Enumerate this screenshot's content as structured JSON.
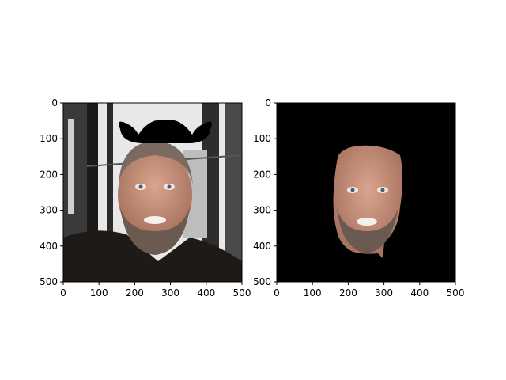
{
  "chart_data": [
    {
      "type": "image",
      "xlim": [
        0,
        500
      ],
      "ylim": [
        500,
        0
      ],
      "xticks": [
        0,
        100,
        200,
        300,
        400,
        500
      ],
      "yticks": [
        0,
        100,
        200,
        300,
        400,
        500
      ],
      "xtick_labels": [
        "0",
        "100",
        "200",
        "300",
        "400",
        "500"
      ],
      "ytick_labels": [
        "0",
        "100",
        "200",
        "300",
        "400",
        "500"
      ],
      "title": "",
      "xlabel": "",
      "ylabel": "",
      "grid": false,
      "content": "photo of a bearded man with a black mustache overlay above his head",
      "colors": {
        "background_light": "#e6e6e6",
        "jacket": "#1e1a18",
        "skin": "#c8907a",
        "beard": "#6b5a50",
        "mustache": "#000000"
      }
    },
    {
      "type": "image",
      "xlim": [
        0,
        500
      ],
      "ylim": [
        500,
        0
      ],
      "xticks": [
        0,
        100,
        200,
        300,
        400,
        500
      ],
      "yticks": [
        0,
        100,
        200,
        300,
        400,
        500
      ],
      "xtick_labels": [
        "0",
        "100",
        "200",
        "300",
        "400",
        "500"
      ],
      "ytick_labels": [
        "0",
        "100",
        "200",
        "300",
        "400",
        "500"
      ],
      "title": "",
      "xlabel": "",
      "ylabel": "",
      "grid": false,
      "content": "segmented face on a black background",
      "colors": {
        "background": "#000000",
        "skin": "#c8907a",
        "beard": "#6b5a50"
      }
    }
  ]
}
